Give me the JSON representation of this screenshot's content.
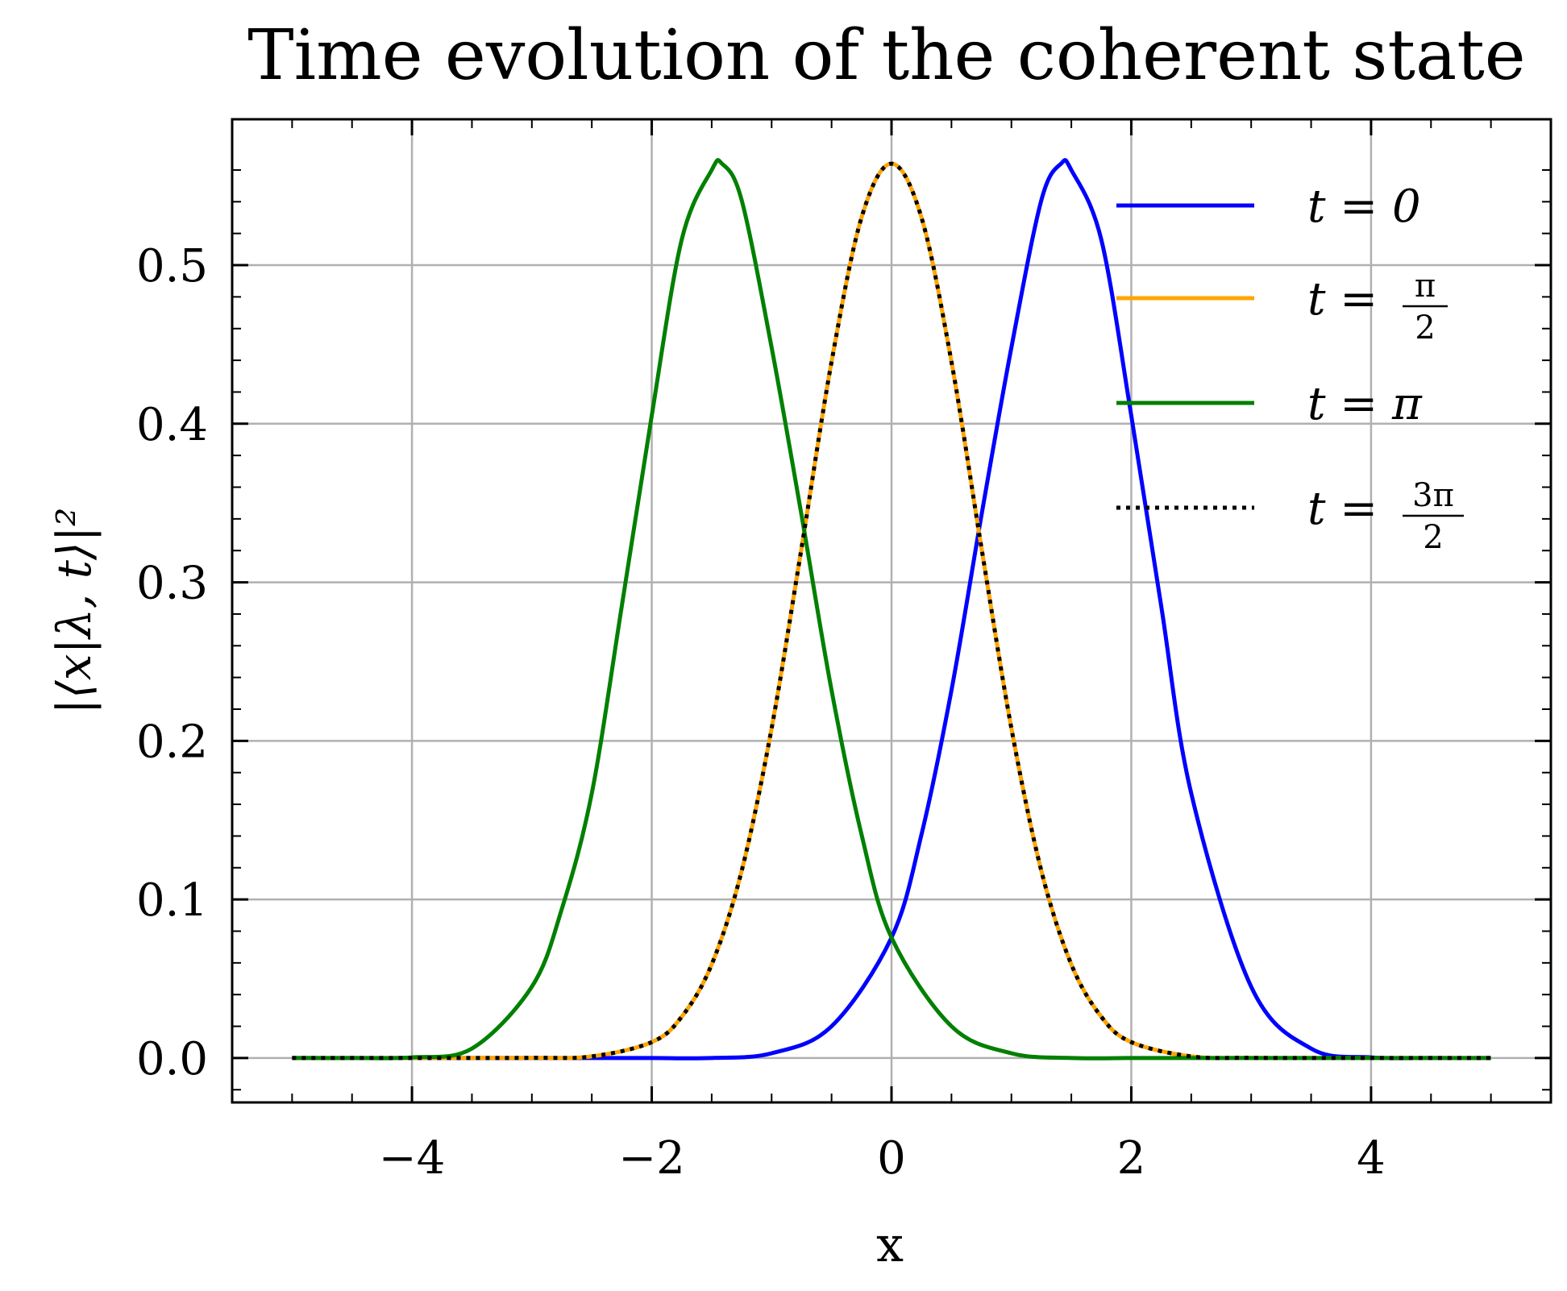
{
  "chart_data": {
    "type": "line",
    "title": "Time evolution of the coherent state",
    "xlabel": "x",
    "ylabel": "|⟨x|λ, t⟩|²",
    "xlim": [
      -5.5,
      5.5
    ],
    "ylim": [
      -0.028,
      0.592
    ],
    "xticks": [
      -4,
      -2,
      0,
      2,
      4
    ],
    "xtick_labels": [
      "−4",
      "−2",
      "0",
      "2",
      "4"
    ],
    "yticks": [
      0.0,
      0.1,
      0.2,
      0.3,
      0.4,
      0.5
    ],
    "ytick_labels": [
      "0.0",
      "0.1",
      "0.2",
      "0.3",
      "0.4",
      "0.5"
    ],
    "grid": true,
    "legend_position": "top-right",
    "series": [
      {
        "name": "t = 0",
        "color": "#0000ff",
        "style": "solid",
        "x": [
          -5,
          -4.5,
          -4,
          -3.5,
          -3,
          -2.5,
          -2,
          -1.5,
          -1,
          -0.5,
          0,
          0.25,
          0.5,
          0.75,
          1,
          1.25,
          1.414,
          1.5,
          1.75,
          2,
          2.25,
          2.5,
          3,
          3.5,
          4,
          4.5,
          5
        ],
        "y": [
          0.0,
          0.0,
          0.0,
          0.0,
          0.0,
          0.0,
          0.0,
          0.0,
          0.003,
          0.02,
          0.076,
          0.141,
          0.232,
          0.342,
          0.448,
          0.541,
          0.564,
          0.56,
          0.516,
          0.405,
          0.285,
          0.167,
          0.045,
          0.006,
          0.0004,
          0.0,
          0.0
        ]
      },
      {
        "name": "t = π/2",
        "color": "#ffa500",
        "style": "solid",
        "x": [
          -5,
          -4,
          -3,
          -2.5,
          -2,
          -1.75,
          -1.5,
          -1.25,
          -1,
          -0.75,
          -0.5,
          -0.25,
          0,
          0.25,
          0.5,
          0.75,
          1,
          1.25,
          1.5,
          1.75,
          2,
          2.5,
          3,
          4,
          5
        ],
        "y": [
          0.0,
          0.0,
          0.0001,
          0.001,
          0.01,
          0.026,
          0.059,
          0.118,
          0.208,
          0.322,
          0.439,
          0.53,
          0.564,
          0.53,
          0.439,
          0.322,
          0.208,
          0.118,
          0.059,
          0.026,
          0.01,
          0.001,
          0.0001,
          0.0,
          0.0
        ]
      },
      {
        "name": "t = π",
        "color": "#008000",
        "style": "solid",
        "x": [
          -5,
          -4.5,
          -4,
          -3.5,
          -3,
          -2.75,
          -2.5,
          -2.25,
          -2,
          -1.75,
          -1.5,
          -1.414,
          -1.25,
          -1,
          -0.75,
          -0.5,
          -0.25,
          0,
          0.5,
          1,
          1.5,
          2,
          2.5,
          3,
          3.5,
          4,
          4.5,
          5
        ],
        "y": [
          0.0,
          0.0,
          0.0004,
          0.006,
          0.045,
          0.094,
          0.167,
          0.285,
          0.405,
          0.516,
          0.56,
          0.564,
          0.541,
          0.448,
          0.342,
          0.232,
          0.141,
          0.076,
          0.02,
          0.003,
          0.0,
          0.0,
          0.0,
          0.0,
          0.0,
          0.0,
          0.0,
          0.0
        ]
      },
      {
        "name": "t = 3π/2",
        "color": "#000000",
        "style": "dotted",
        "x": [
          -5,
          -4,
          -3,
          -2.5,
          -2,
          -1.75,
          -1.5,
          -1.25,
          -1,
          -0.75,
          -0.5,
          -0.25,
          0,
          0.25,
          0.5,
          0.75,
          1,
          1.25,
          1.5,
          1.75,
          2,
          2.5,
          3,
          4,
          5
        ],
        "y": [
          0.0,
          0.0,
          0.0001,
          0.001,
          0.01,
          0.026,
          0.059,
          0.118,
          0.208,
          0.322,
          0.439,
          0.53,
          0.564,
          0.53,
          0.439,
          0.322,
          0.208,
          0.118,
          0.059,
          0.026,
          0.01,
          0.001,
          0.0001,
          0.0,
          0.0
        ]
      }
    ],
    "legend": [
      {
        "t": "t",
        "eq": "=",
        "rhs": "0",
        "num": "",
        "den": ""
      },
      {
        "t": "t",
        "eq": "=",
        "rhs": "",
        "num": "π",
        "den": "2"
      },
      {
        "t": "t",
        "eq": "=",
        "rhs": "π",
        "num": "",
        "den": ""
      },
      {
        "t": "t",
        "eq": "=",
        "rhs": "",
        "num": "3π",
        "den": "2"
      }
    ]
  }
}
